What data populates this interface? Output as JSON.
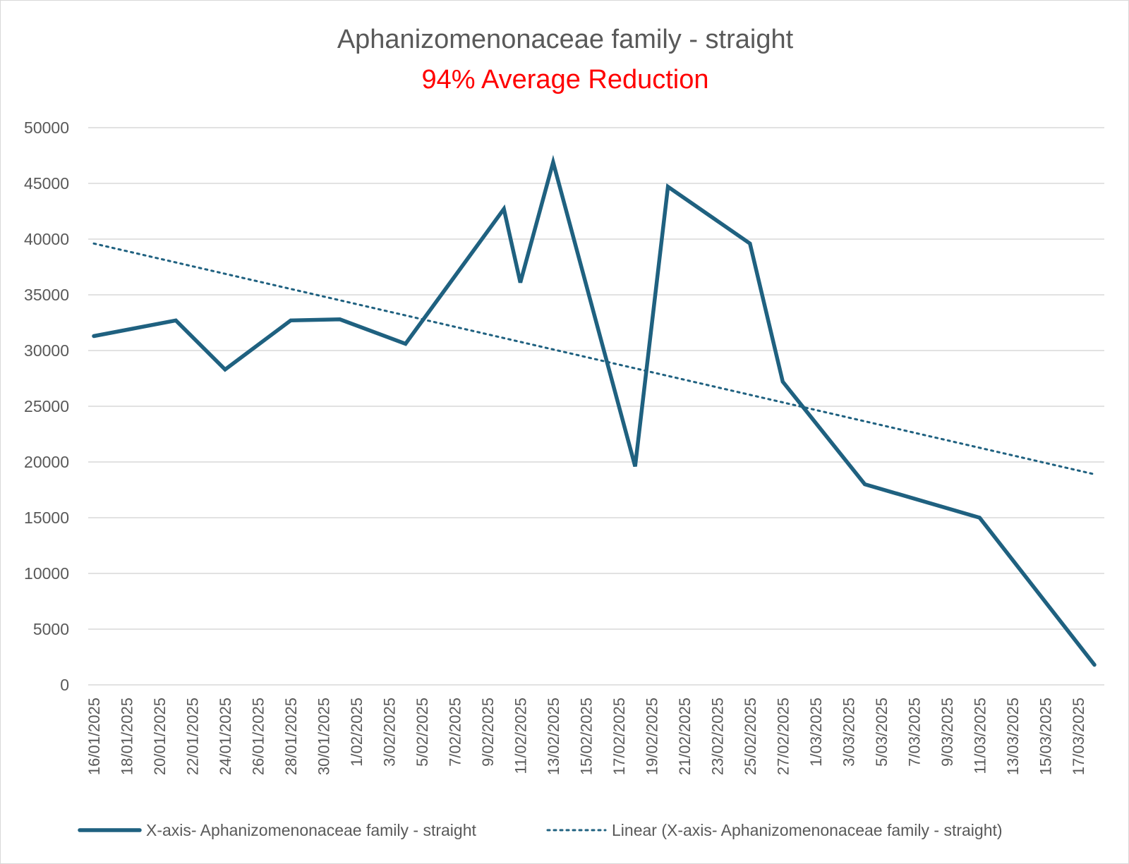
{
  "chart_data": {
    "type": "line",
    "title": "Aphanizomenonaceae family - straight",
    "subtitle": "94% Average Reduction",
    "xlabel": "",
    "ylabel": "",
    "ylim": [
      0,
      50000
    ],
    "yticks": [
      0,
      5000,
      10000,
      15000,
      20000,
      25000,
      30000,
      35000,
      40000,
      45000,
      50000
    ],
    "x_start": "2025-01-16",
    "x_end": "2025-03-18",
    "tick_labels": [
      "16/01/2025",
      "18/01/2025",
      "20/01/2025",
      "22/01/2025",
      "24/01/2025",
      "26/01/2025",
      "28/01/2025",
      "30/01/2025",
      "1/02/2025",
      "3/02/2025",
      "5/02/2025",
      "7/02/2025",
      "9/02/2025",
      "11/02/2025",
      "13/02/2025",
      "15/02/2025",
      "17/02/2025",
      "19/02/2025",
      "21/02/2025",
      "23/02/2025",
      "25/02/2025",
      "27/02/2025",
      "1/03/2025",
      "3/03/2025",
      "5/03/2025",
      "7/03/2025",
      "9/03/2025",
      "11/03/2025",
      "13/03/2025",
      "15/03/2025",
      "17/03/2025"
    ],
    "grid": true,
    "legend_position": "bottom",
    "series": [
      {
        "name": "X-axis- Aphanizomenonaceae family - straight",
        "style": "solid",
        "color": "#1f6180",
        "x": [
          "2025-01-16",
          "2025-01-21",
          "2025-01-24",
          "2025-01-28",
          "2025-01-31",
          "2025-02-04",
          "2025-02-10",
          "2025-02-11",
          "2025-02-13",
          "2025-02-18",
          "2025-02-20",
          "2025-02-25",
          "2025-02-27",
          "2025-03-04",
          "2025-03-11",
          "2025-03-18"
        ],
        "values": [
          31300,
          32700,
          28300,
          32700,
          32800,
          30600,
          42700,
          36100,
          46900,
          19600,
          44700,
          39600,
          27200,
          18000,
          15000,
          1800
        ]
      },
      {
        "name": "Linear (X-axis- Aphanizomenonaceae family - straight)",
        "style": "dotted",
        "color": "#1f6180",
        "x": [
          "2025-01-16",
          "2025-03-18"
        ],
        "values": [
          39600,
          18900
        ]
      }
    ]
  },
  "colors": {
    "title": "#595959",
    "subtitle": "#ff0000",
    "series": "#1f6180",
    "grid": "#d9d9d9",
    "axis_text": "#595959"
  }
}
